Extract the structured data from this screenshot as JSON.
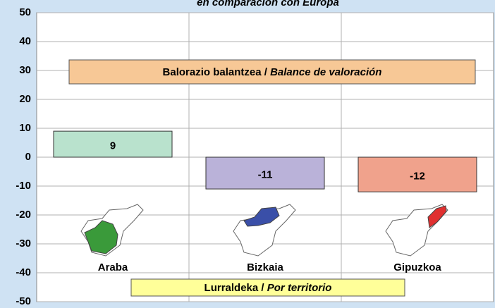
{
  "chart_data": {
    "type": "bar",
    "title": "en comparación con Europa",
    "categories": [
      "Araba",
      "Bizkaia",
      "Gipuzkoa"
    ],
    "values": [
      9,
      -11,
      -12
    ],
    "colors": [
      "#b9e2cd",
      "#bab2d9",
      "#f0a28c"
    ],
    "ylim": [
      -50,
      50
    ],
    "yticks": [
      -50,
      -40,
      -30,
      -20,
      -10,
      0,
      10,
      20,
      30,
      40,
      50
    ],
    "grid": true,
    "annotations": {
      "top": [
        "Balorazio balantzea /",
        "Balance de valoración"
      ],
      "bottom": [
        "Lurraldeka /",
        "Por territorio"
      ]
    }
  }
}
